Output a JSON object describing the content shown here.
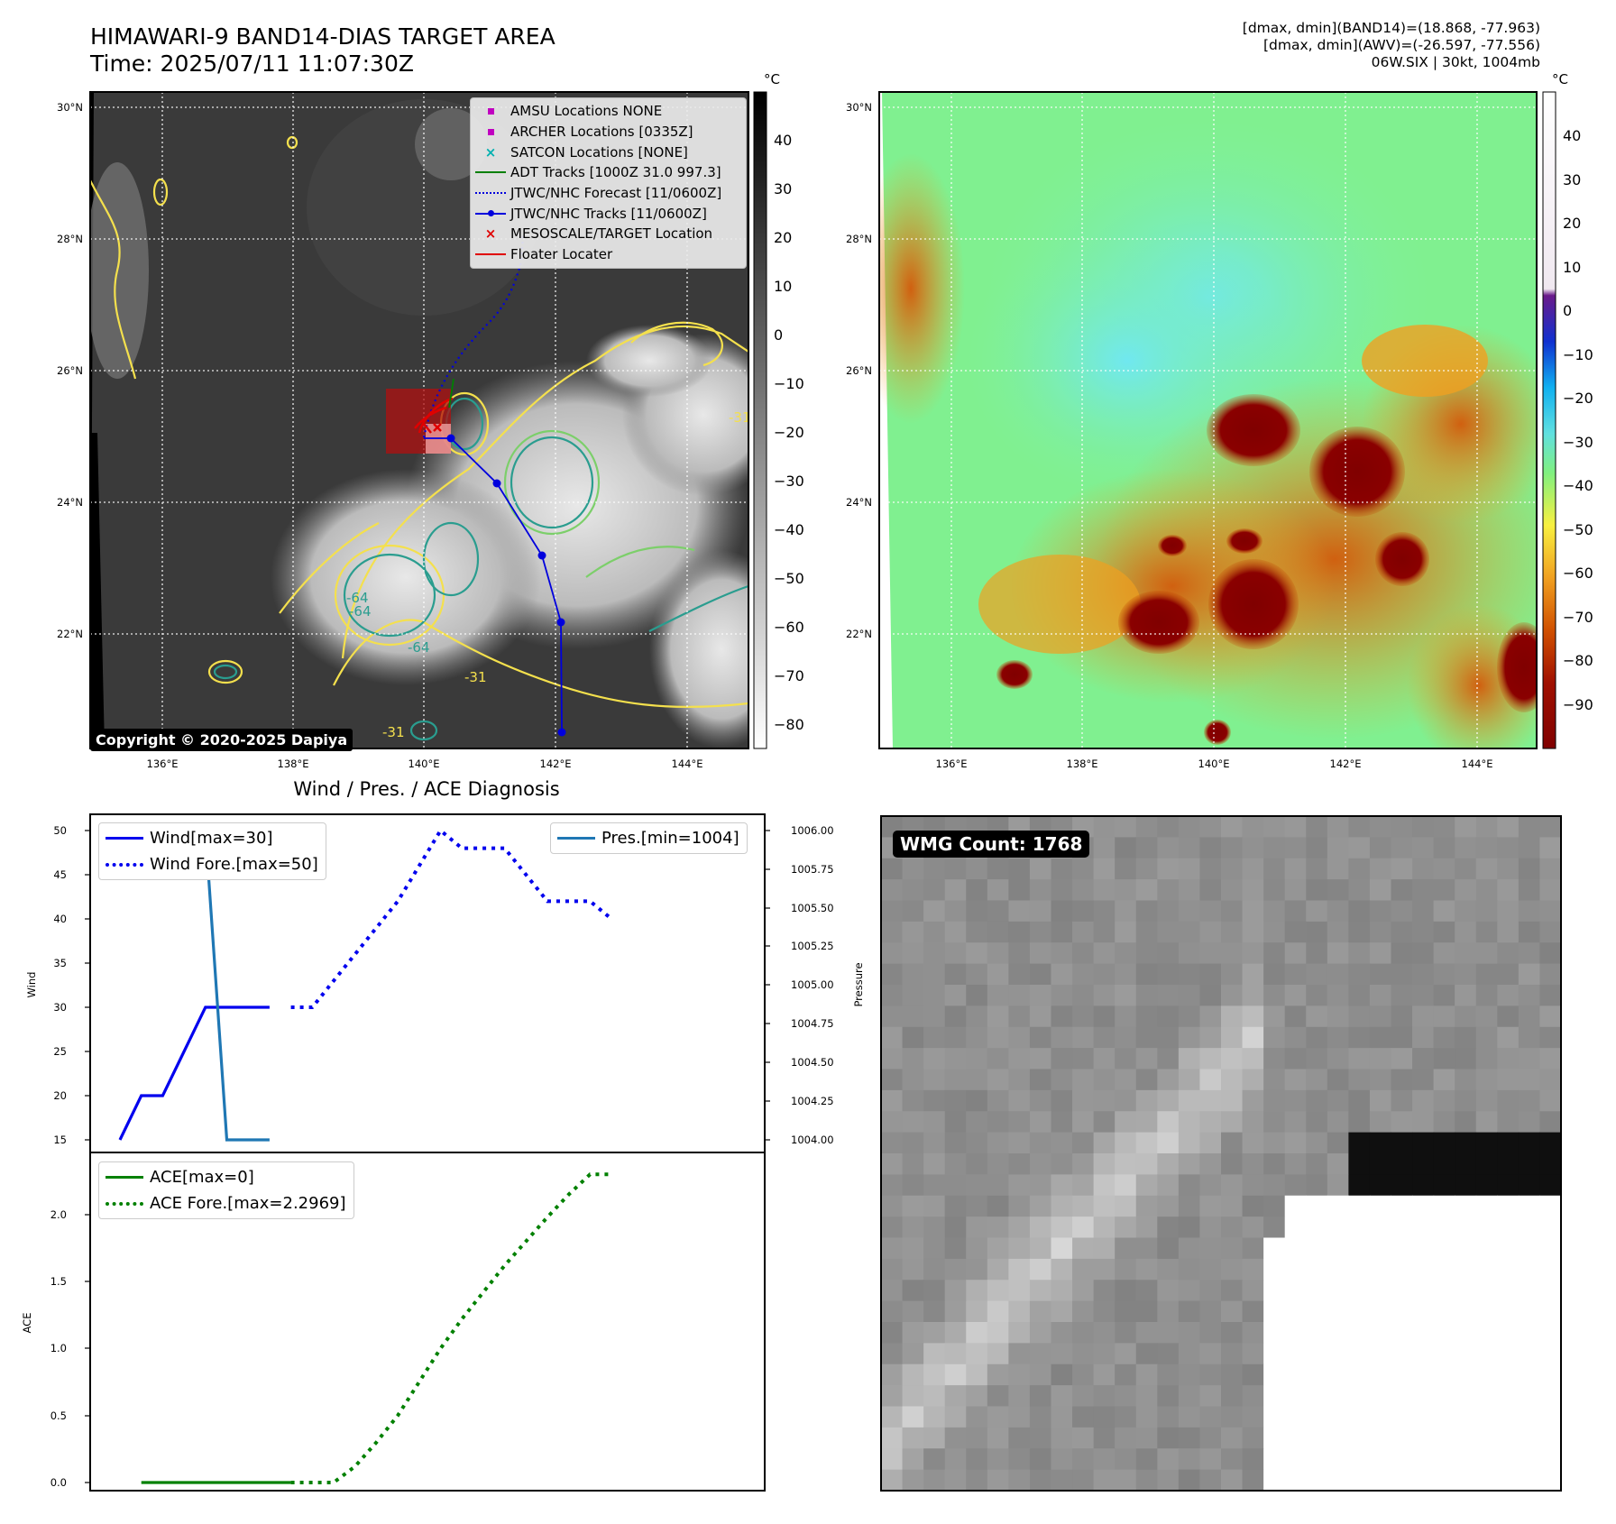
{
  "header": {
    "title_line1": "HIMAWARI-9 BAND14-DIAS TARGET AREA",
    "title_line2": "Time: 2025/07/11 11:07:30Z",
    "right_line1": "[dmax, dmin](BAND14)=(18.868, -77.963)",
    "right_line2": "[dmax, dmin](AWV)=(-26.597, -77.556)",
    "right_line3": "06W.SIX | 30kt, 1004mb"
  },
  "maps": {
    "lat_labels": [
      "30°N",
      "28°N",
      "26°N",
      "24°N",
      "22°N"
    ],
    "lon_labels": [
      "136°E",
      "138°E",
      "140°E",
      "142°E",
      "144°E"
    ],
    "copyright": "Copyright © 2020-2025 Dapiya",
    "contour_labels": [
      "-31",
      "-64",
      "-31",
      "-31",
      "-64",
      "-64"
    ],
    "colorbar_unit": "°C",
    "ir_colorbar_ticks": [
      "40",
      "30",
      "20",
      "10",
      "0",
      "−10",
      "−20",
      "−30",
      "−40",
      "−50",
      "−60",
      "−70",
      "−80"
    ],
    "awv_colorbar_ticks": [
      "40",
      "30",
      "20",
      "10",
      "0",
      "−10",
      "−20",
      "−30",
      "−40",
      "−50",
      "−60",
      "−70",
      "−80",
      "−90"
    ],
    "legend": [
      {
        "label": "AMSU Locations NONE",
        "color": "#c000c0",
        "marker": "square"
      },
      {
        "label": "ARCHER Locations [0335Z]",
        "color": "#c000c0",
        "marker": "square"
      },
      {
        "label": "SATCON Locations [NONE]",
        "color": "#00b0b0",
        "marker": "x"
      },
      {
        "label": "ADT Tracks [1000Z 31.0 997.3]",
        "color": "#008000",
        "marker": "line"
      },
      {
        "label": "JTWC/NHC Forecast [11/0600Z]",
        "color": "#0000dd",
        "marker": "dotted"
      },
      {
        "label": "JTWC/NHC Tracks [11/0600Z]",
        "color": "#0000dd",
        "marker": "line-dot"
      },
      {
        "label": "MESOSCALE/TARGET Location",
        "color": "#e00000",
        "marker": "x"
      },
      {
        "label": "Floater Locater",
        "color": "#e00000",
        "marker": "line"
      }
    ],
    "colors": {
      "ir_contour_cold": "#2a9d8f",
      "ir_contour_warm": "#f4e04d",
      "ir_contour_mid": "#7ccf6a",
      "track": "#0000dd",
      "floater": "#e00000"
    }
  },
  "diagnosis": {
    "title": "Wind / Pres. / ACE Diagnosis",
    "wind_axis_label": "Wind",
    "pressure_axis_label": "Pressure",
    "ace_axis_label": "ACE",
    "wind_ticks": [
      "50",
      "45",
      "40",
      "35",
      "30",
      "25",
      "20",
      "15"
    ],
    "pressure_ticks": [
      "1006.00",
      "1005.75",
      "1005.50",
      "1005.25",
      "1005.00",
      "1004.75",
      "1004.50",
      "1004.25",
      "1004.00"
    ],
    "ace_ticks": [
      "2.0",
      "1.5",
      "1.0",
      "0.5",
      "0.0"
    ],
    "legend_wind": "Wind[max=30]",
    "legend_wind_fore": "Wind Fore.[max=50]",
    "legend_pres": "Pres.[min=1004]",
    "legend_ace": "ACE[max=0]",
    "legend_ace_fore": "ACE Fore.[max=2.2969]"
  },
  "wmg": {
    "label": "WMG Count: 1768"
  },
  "chart_data": [
    {
      "type": "line",
      "title": "Wind / Pres. / ACE Diagnosis",
      "ylabel": "Wind",
      "ylim": [
        14,
        51
      ],
      "y2label": "Pressure",
      "y2lim": [
        1003.98,
        1006.1
      ],
      "series": [
        {
          "name": "Wind[max=30]",
          "x": [
            0,
            1,
            2,
            3,
            4,
            5,
            6,
            7
          ],
          "values": [
            15,
            20,
            20,
            25,
            30,
            30,
            30,
            30
          ],
          "style": "solid",
          "color": "#0000ee"
        },
        {
          "name": "Wind Fore.[max=50]",
          "x": [
            8,
            9,
            10,
            11,
            12,
            13,
            14,
            15,
            16,
            17,
            18,
            19,
            20,
            21,
            22,
            23
          ],
          "values": [
            30,
            30,
            33,
            36,
            39,
            42,
            46,
            50,
            48,
            48,
            48,
            45,
            42,
            42,
            42,
            40
          ],
          "style": "dotted",
          "color": "#0000ee"
        },
        {
          "name": "Pres.[min=1004]",
          "x": [
            1,
            2,
            3,
            4,
            5,
            6,
            7
          ],
          "values": [
            1006,
            1006,
            1006,
            1006,
            1004,
            1004,
            1004
          ],
          "axis": "right",
          "style": "solid",
          "color": "#1f77b4"
        }
      ]
    },
    {
      "type": "line",
      "ylabel": "ACE",
      "ylim": [
        -0.05,
        2.4
      ],
      "series": [
        {
          "name": "ACE[max=0]",
          "x": [
            1,
            2,
            3,
            4,
            5,
            6,
            7,
            8
          ],
          "values": [
            0,
            0,
            0,
            0,
            0,
            0,
            0,
            0
          ],
          "style": "solid",
          "color": "#008000"
        },
        {
          "name": "ACE Fore.[max=2.2969]",
          "x": [
            8,
            9,
            10,
            11,
            12,
            13,
            14,
            15,
            16,
            17,
            18,
            19,
            20,
            21,
            22,
            23
          ],
          "values": [
            0,
            0,
            0,
            0.12,
            0.3,
            0.5,
            0.75,
            1.0,
            1.22,
            1.42,
            1.62,
            1.8,
            1.98,
            2.15,
            2.3,
            2.3
          ],
          "style": "dotted",
          "color": "#008000"
        }
      ]
    }
  ]
}
